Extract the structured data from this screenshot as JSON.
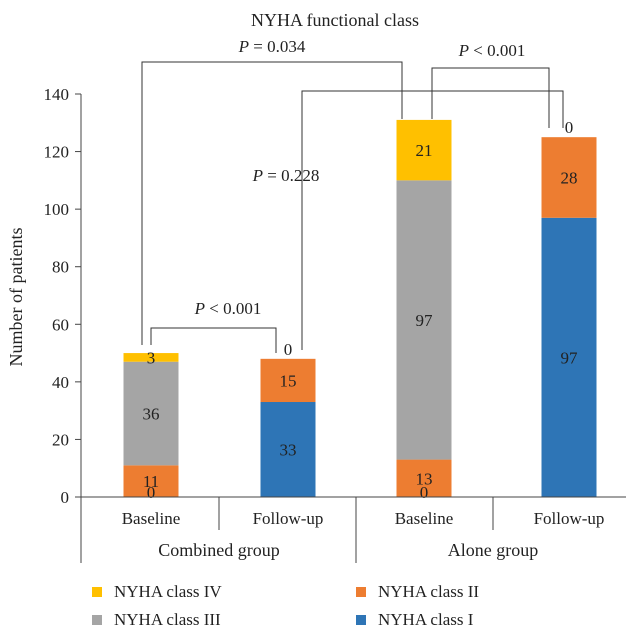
{
  "chart_data": {
    "type": "bar",
    "stacked": true,
    "title": "NYHA functional class",
    "ylabel": "Number of patients",
    "ylim": [
      0,
      140
    ],
    "yticks": [
      0,
      20,
      40,
      60,
      80,
      100,
      120,
      140
    ],
    "categories": [
      "Baseline",
      "Follow-up",
      "Baseline",
      "Follow-up"
    ],
    "groups": [
      {
        "label": "Combined group",
        "categories": [
          0,
          1
        ]
      },
      {
        "label": "Alone group",
        "categories": [
          2,
          3
        ]
      }
    ],
    "series": [
      {
        "name": "NYHA class I",
        "color": "#2E75B6",
        "values": [
          0,
          33,
          0,
          97
        ]
      },
      {
        "name": "NYHA class II",
        "color": "#ED7D31",
        "values": [
          11,
          15,
          13,
          28
        ]
      },
      {
        "name": "NYHA class III",
        "color": "#A5A5A5",
        "values": [
          36,
          0,
          97,
          0
        ]
      },
      {
        "name": "NYHA class IV",
        "color": "#FFC000",
        "values": [
          3,
          0,
          21,
          0
        ]
      }
    ],
    "segment_labels": [
      [
        "0",
        "11",
        "36",
        "3"
      ],
      [
        "33",
        "15",
        "0"
      ],
      [
        "0",
        "13",
        "97",
        "21"
      ],
      [
        "97",
        "28",
        "0"
      ]
    ],
    "annotations": [
      {
        "text": "P = 0.034"
      },
      {
        "text": "P < 0.001"
      },
      {
        "text": "P = 0.228"
      },
      {
        "text": "P < 0.001"
      }
    ],
    "legend": {
      "placement": "bottom",
      "order": [
        "NYHA class IV",
        "NYHA class II",
        "NYHA class III",
        "NYHA class I"
      ]
    },
    "grid": false
  }
}
